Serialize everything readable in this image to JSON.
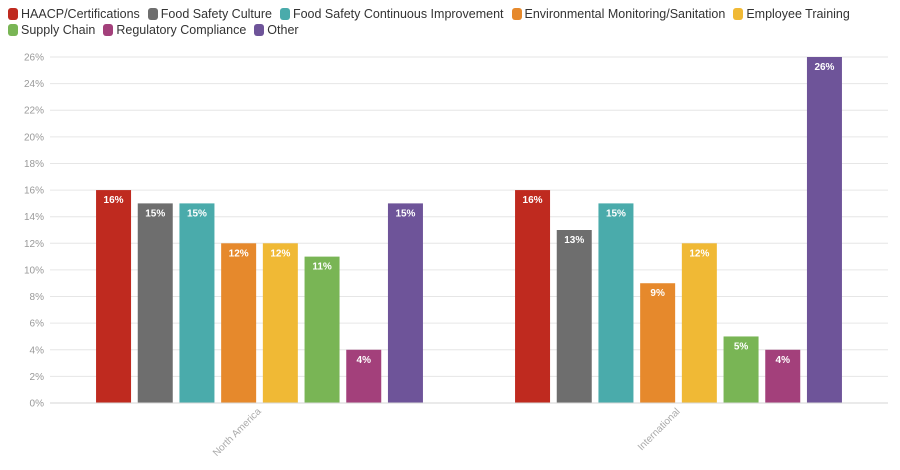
{
  "chart_data": {
    "type": "bar",
    "title": "",
    "xlabel": "",
    "ylabel": "",
    "categories": [
      "North America",
      "International"
    ],
    "ylim": [
      0,
      26
    ],
    "yticks": [
      "0%",
      "2%",
      "4%",
      "6%",
      "8%",
      "10%",
      "12%",
      "14%",
      "16%",
      "18%",
      "20%",
      "22%",
      "24%",
      "26%"
    ],
    "grid": true,
    "legend_position": "top-left",
    "series": [
      {
        "name": "HAACP/Certifications",
        "color": "#bf2a1f",
        "values": [
          16,
          16
        ],
        "labels": [
          "16%",
          "16%"
        ]
      },
      {
        "name": "Food Safety Culture",
        "color": "#6e6e6e",
        "values": [
          15,
          13
        ],
        "labels": [
          "15%",
          "13%"
        ]
      },
      {
        "name": "Food Safety Continuous Improvement",
        "color": "#4aabab",
        "values": [
          15,
          15
        ],
        "labels": [
          "15%",
          "15%"
        ]
      },
      {
        "name": "Environmental Monitoring/Sanitation",
        "color": "#e6892c",
        "values": [
          12,
          9
        ],
        "labels": [
          "12%",
          "9%"
        ]
      },
      {
        "name": "Employee Training",
        "color": "#f0b935",
        "values": [
          12,
          12
        ],
        "labels": [
          "12%",
          "12%"
        ]
      },
      {
        "name": "Supply Chain",
        "color": "#79b555",
        "values": [
          11,
          5
        ],
        "labels": [
          "11%",
          "5%"
        ]
      },
      {
        "name": "Regulatory Compliance",
        "color": "#a3407b",
        "values": [
          4,
          4
        ],
        "labels": [
          "4%",
          "4%"
        ]
      },
      {
        "name": "Other",
        "color": "#6e5499",
        "values": [
          15,
          26
        ],
        "labels": [
          "15%",
          "26%"
        ]
      }
    ]
  }
}
